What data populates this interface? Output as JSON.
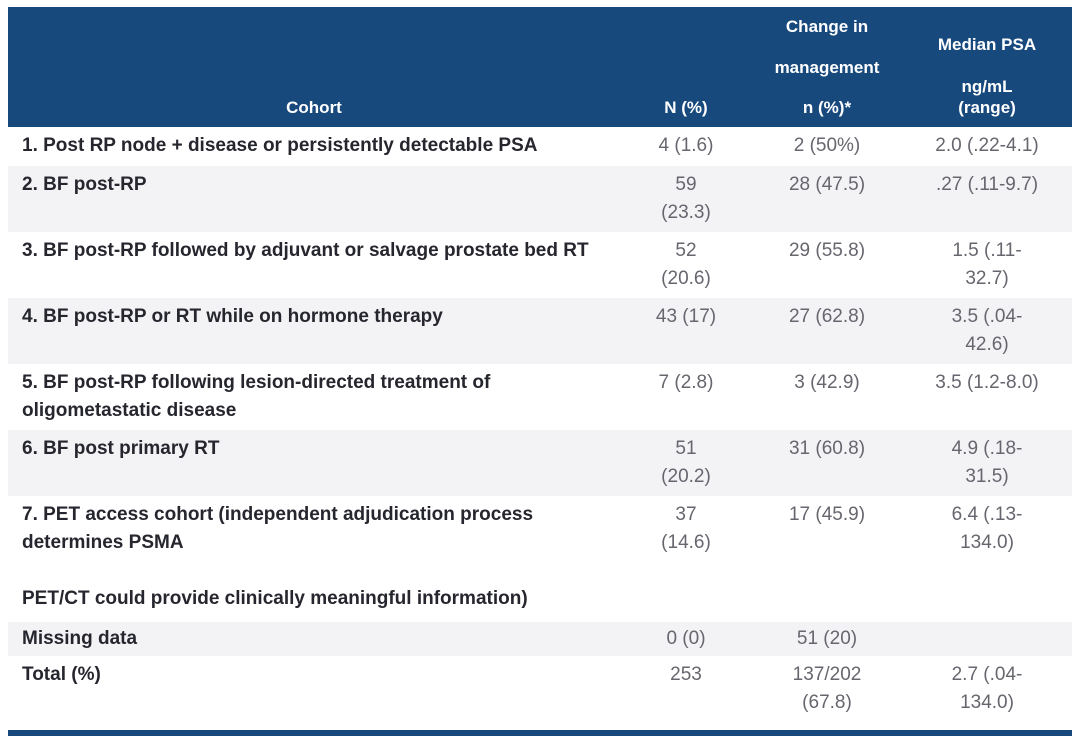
{
  "header": {
    "cohort": "Cohort",
    "n": "N (%)",
    "change_line1": "Change in",
    "change_line2": "management",
    "change_line3": "n (%)*",
    "psa_line1": "Median PSA",
    "psa_line2": "ng/mL",
    "psa_line3": "(range)"
  },
  "rows": [
    {
      "cohort": "1. Post RP node + disease or persistently detectable PSA",
      "n": "4 (1.6)",
      "change": "2 (50%)",
      "psa": "2.0 (.22-4.1)"
    },
    {
      "cohort": "2. BF post-RP",
      "n": "59\n(23.3)",
      "change": "28 (47.5)",
      "psa": ".27 (.11-9.7)"
    },
    {
      "cohort": "3. BF post-RP followed by adjuvant or salvage prostate bed RT",
      "n": "52\n(20.6)",
      "change": "29 (55.8)",
      "psa": "1.5 (.11-\n32.7)"
    },
    {
      "cohort": "4. BF post-RP or RT while on hormone therapy",
      "n": "43 (17)",
      "change": "27 (62.8)",
      "psa": "3.5 (.04-\n42.6)"
    },
    {
      "cohort": "5. BF post-RP following lesion-directed treatment of oligometastatic disease",
      "n": "7 (2.8)",
      "change": "3 (42.9)",
      "psa": "3.5 (1.2-8.0)"
    },
    {
      "cohort": "6. BF post primary RT",
      "n": "51\n(20.2)",
      "change": "31 (60.8)",
      "psa": "4.9 (.18-\n31.5)"
    },
    {
      "cohort": "7. PET access cohort (independent adjudication process determines PSMA\n\nPET/CT could provide clinically meaningful information)",
      "n": "37\n(14.6)",
      "change": "17 (45.9)",
      "psa": "6.4 (.13-\n134.0)"
    },
    {
      "cohort": "Missing data",
      "n": "0 (0)",
      "change": "51 (20)",
      "psa": ""
    },
    {
      "cohort": "Total (%)",
      "n": "253",
      "change": "137/202\n(67.8)",
      "psa": "2.7 (.04-\n134.0)"
    }
  ],
  "colors": {
    "header_bg": "#17497d",
    "row_alt_bg": "#f3f3f6",
    "cohort_text": "#26262e",
    "data_text": "#66666e",
    "header_text": "#ffffff"
  }
}
